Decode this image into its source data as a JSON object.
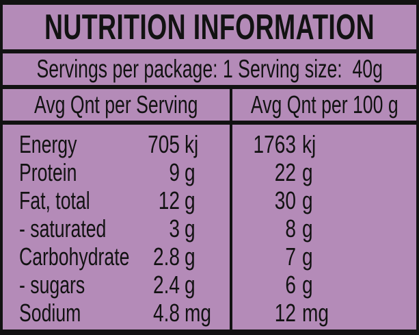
{
  "colors": {
    "background": "#b48bb8",
    "ink": "#121212"
  },
  "title": "NUTRITION INFORMATION",
  "servings_line": "Servings per package: 1 Serving size:  40g",
  "columns": {
    "per_serving": "Avg Qnt per Serving",
    "per_100g": "Avg Qnt per 100 g"
  },
  "rows": [
    {
      "label": "Energy",
      "serving_value": "705",
      "serving_unit": "kj",
      "per_100g_value": "1763",
      "per_100g_unit": "kj"
    },
    {
      "label": "Protein",
      "serving_value": "9",
      "serving_unit": "g",
      "per_100g_value": "22",
      "per_100g_unit": "g"
    },
    {
      "label": "Fat, total",
      "serving_value": "12",
      "serving_unit": "g",
      "per_100g_value": "30",
      "per_100g_unit": "g"
    },
    {
      "label": "- saturated",
      "serving_value": "3",
      "serving_unit": "g",
      "per_100g_value": "8",
      "per_100g_unit": "g"
    },
    {
      "label": "Carbohydrate",
      "serving_value": "2.8",
      "serving_unit": "g",
      "per_100g_value": "7",
      "per_100g_unit": "g"
    },
    {
      "label": "- sugars",
      "serving_value": "2.4",
      "serving_unit": "g",
      "per_100g_value": "6",
      "per_100g_unit": "g"
    },
    {
      "label": "Sodium",
      "serving_value": "4.8",
      "serving_unit": "mg",
      "per_100g_value": "12",
      "per_100g_unit": "mg"
    }
  ]
}
